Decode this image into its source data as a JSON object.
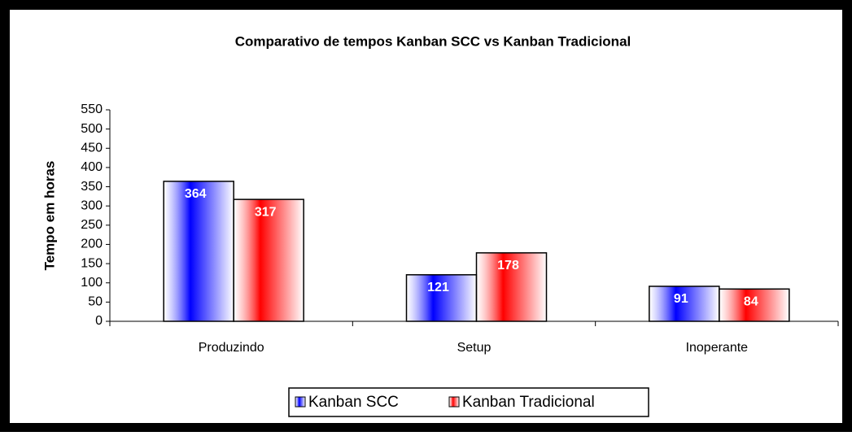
{
  "chart_data": {
    "type": "bar",
    "title": "Comparativo de tempos Kanban SCC vs Kanban Tradicional",
    "y_label": "Tempo em horas",
    "categories": [
      "Produzindo",
      "Setup",
      "Inoperante"
    ],
    "series": [
      {
        "name": "Kanban SCC",
        "color": "#0000ff",
        "values": [
          364,
          121,
          91
        ]
      },
      {
        "name": "Kanban Tradicional",
        "color": "#ff0000",
        "values": [
          317,
          178,
          84
        ]
      }
    ],
    "ylim": [
      0,
      550
    ],
    "yticks": [
      0,
      50,
      100,
      150,
      200,
      250,
      300,
      350,
      400,
      450,
      500,
      550
    ],
    "legend": "bottom"
  }
}
